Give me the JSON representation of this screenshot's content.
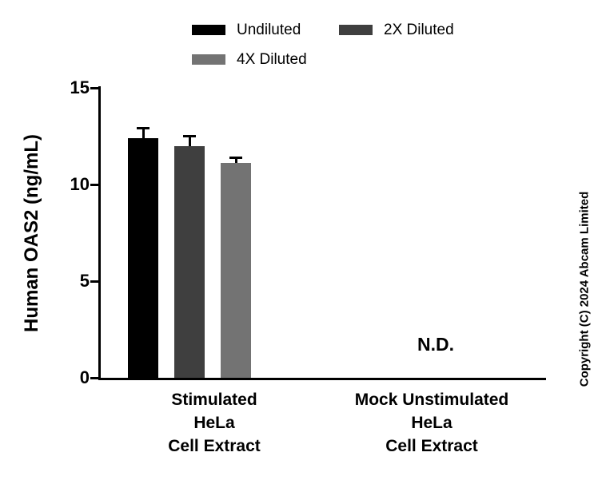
{
  "copyright": "Copyright (C) 2024 Abcam Limited",
  "chart_data": {
    "type": "bar",
    "title": "",
    "ylabel": "Human OAS2 (ng/mL)",
    "xlabel": "",
    "ylim": [
      0,
      15
    ],
    "yticks": [
      0,
      5,
      10,
      15
    ],
    "grid": false,
    "legend_position": "top",
    "categories": [
      "Stimulated HeLa Cell Extract",
      "Mock Unstimulated HeLa Cell Extract"
    ],
    "category_label_lines": [
      [
        "Stimulated",
        "HeLa",
        "Cell Extract"
      ],
      [
        "Mock Unstimulated",
        "HeLa",
        "Cell Extract"
      ]
    ],
    "series": [
      {
        "name": "Undiluted",
        "color": "#000000",
        "values": [
          12.4,
          null
        ],
        "errors": [
          0.5,
          null
        ]
      },
      {
        "name": "2X Diluted",
        "color": "#3f3f3f",
        "values": [
          12.0,
          null
        ],
        "errors": [
          0.5,
          null
        ]
      },
      {
        "name": "4X Diluted",
        "color": "#737373",
        "values": [
          11.1,
          null
        ],
        "errors": [
          0.3,
          null
        ]
      }
    ],
    "not_detected_label": "N.D.",
    "annotations": [
      {
        "text": "N.D.",
        "category": "Mock Unstimulated HeLa Cell Extract"
      }
    ]
  }
}
